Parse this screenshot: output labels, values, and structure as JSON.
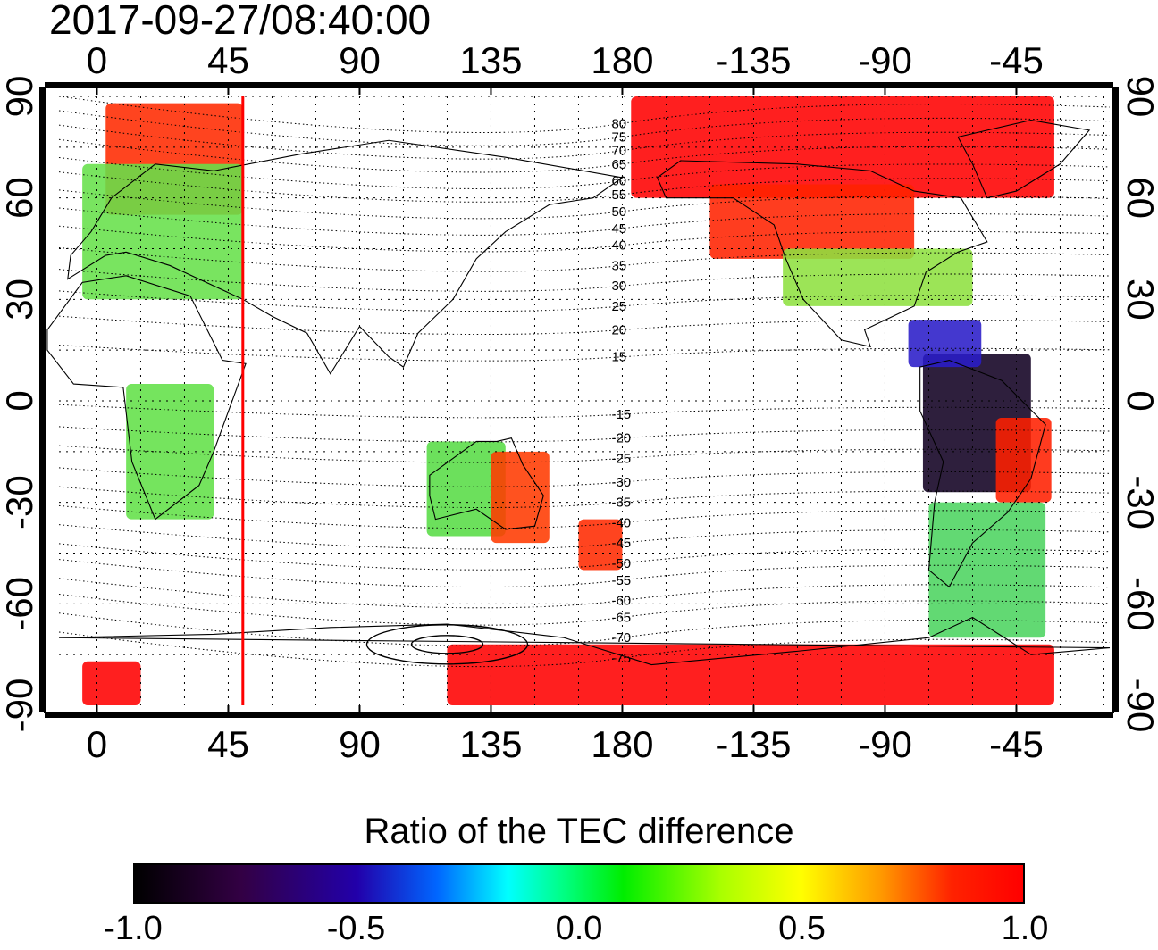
{
  "header": {
    "timestamp": "2017-09-27/08:40:00"
  },
  "map": {
    "projection": "equirectangular",
    "lon_ticks": [
      {
        "lon": 0,
        "label": "0"
      },
      {
        "lon": 45,
        "label": "45"
      },
      {
        "lon": 90,
        "label": "90"
      },
      {
        "lon": 135,
        "label": "135"
      },
      {
        "lon": 180,
        "label": "180"
      },
      {
        "lon": 225,
        "label": "-135"
      },
      {
        "lon": 270,
        "label": "-90"
      },
      {
        "lon": 315,
        "label": "-45"
      }
    ],
    "lat_ticks": [
      {
        "lat": 90,
        "label": "90"
      },
      {
        "lat": 60,
        "label": "60"
      },
      {
        "lat": 30,
        "label": "30"
      },
      {
        "lat": 0,
        "label": "0"
      },
      {
        "lat": -30,
        "label": "-30"
      },
      {
        "lat": -60,
        "label": "-60"
      },
      {
        "lat": -90,
        "label": "-90"
      }
    ],
    "meridian_marker": {
      "lon": 50,
      "color": "#ff0000"
    },
    "magnetic_latitude_labels": [
      {
        "label": "80",
        "lat": 82
      },
      {
        "label": "75",
        "lat": 78
      },
      {
        "label": "70",
        "lat": 74
      },
      {
        "label": "65",
        "lat": 70
      },
      {
        "label": "60",
        "lat": 65
      },
      {
        "label": "55",
        "lat": 61
      },
      {
        "label": "50",
        "lat": 56
      },
      {
        "label": "45",
        "lat": 51
      },
      {
        "label": "40",
        "lat": 46
      },
      {
        "label": "35",
        "lat": 40
      },
      {
        "label": "30",
        "lat": 34
      },
      {
        "label": "25",
        "lat": 28
      },
      {
        "label": "20",
        "lat": 21
      },
      {
        "label": "15",
        "lat": 13
      },
      {
        "label": "-15",
        "lat": -4
      },
      {
        "label": "-20",
        "lat": -11
      },
      {
        "label": "-25",
        "lat": -17
      },
      {
        "label": "-30",
        "lat": -24
      },
      {
        "label": "-35",
        "lat": -30
      },
      {
        "label": "-40",
        "lat": -36
      },
      {
        "label": "-45",
        "lat": -42
      },
      {
        "label": "-50",
        "lat": -48
      },
      {
        "label": "-55",
        "lat": -53
      },
      {
        "label": "-60",
        "lat": -59
      },
      {
        "label": "-65",
        "lat": -64
      },
      {
        "label": "-70",
        "lat": -70
      },
      {
        "label": "-75",
        "lat": -76
      }
    ],
    "tec_regions": [
      {
        "name": "north-atlantic-europe-high",
        "color": "#ff2a00",
        "lon": [
          3,
          50
        ],
        "lat": [
          55,
          88
        ]
      },
      {
        "name": "eurasia-high-lat",
        "color": "#66e04a",
        "lon": [
          -5,
          50
        ],
        "lat": [
          30,
          70
        ]
      },
      {
        "name": "north-pacific-america-polar",
        "color": "#ff0000",
        "lon": [
          183,
          328
        ],
        "lat": [
          60,
          90
        ]
      },
      {
        "name": "north-america-band",
        "color": "#ff2200",
        "lon": [
          210,
          280
        ],
        "lat": [
          42,
          64
        ]
      },
      {
        "name": "north-america-mid",
        "color": "#8ee040",
        "lon": [
          235,
          300
        ],
        "lat": [
          28,
          45
        ]
      },
      {
        "name": "south-america-negative",
        "color": "#110022",
        "lon": [
          283,
          320
        ],
        "lat": [
          -27,
          14
        ]
      },
      {
        "name": "south-america-blue",
        "color": "#2a1cc8",
        "lon": [
          278,
          303
        ],
        "lat": [
          10,
          24
        ]
      },
      {
        "name": "south-america-east-red",
        "color": "#ff2000",
        "lon": [
          308,
          327
        ],
        "lat": [
          -30,
          -5
        ]
      },
      {
        "name": "southern-south-america",
        "color": "#4cd460",
        "lon": [
          285,
          325
        ],
        "lat": [
          -70,
          -30
        ]
      },
      {
        "name": "australia-west",
        "color": "#58dc46",
        "lon": [
          113,
          140
        ],
        "lat": [
          -40,
          -12
        ]
      },
      {
        "name": "australia-east",
        "color": "#ff3a00",
        "lon": [
          135,
          155
        ],
        "lat": [
          -42,
          -15
        ]
      },
      {
        "name": "new-zealand",
        "color": "#ff2a00",
        "lon": [
          165,
          180
        ],
        "lat": [
          -50,
          -35
        ]
      },
      {
        "name": "africa",
        "color": "#62e048",
        "lon": [
          10,
          40
        ],
        "lat": [
          -35,
          5
        ]
      },
      {
        "name": "antarctic-west",
        "color": "#ff0000",
        "lon": [
          -5,
          15
        ],
        "lat": [
          -90,
          -77
        ]
      },
      {
        "name": "antarctic-main",
        "color": "#ff0000",
        "lon": [
          120,
          328
        ],
        "lat": [
          -90,
          -72
        ]
      }
    ]
  },
  "colorbar": {
    "title": "Ratio of the TEC difference",
    "range": [
      -1.0,
      1.0
    ],
    "tick_labels": [
      "-1.0",
      "-0.5",
      "0.0",
      "0.5",
      "1.0"
    ],
    "stops": [
      {
        "v": -1.0,
        "color": "#000000"
      },
      {
        "v": -0.5,
        "color": "#0066ff"
      },
      {
        "v": -0.2,
        "color": "#00ffff"
      },
      {
        "v": 0.0,
        "color": "#00ee00"
      },
      {
        "v": 0.5,
        "color": "#ffff00"
      },
      {
        "v": 1.0,
        "color": "#ff0000"
      }
    ]
  }
}
